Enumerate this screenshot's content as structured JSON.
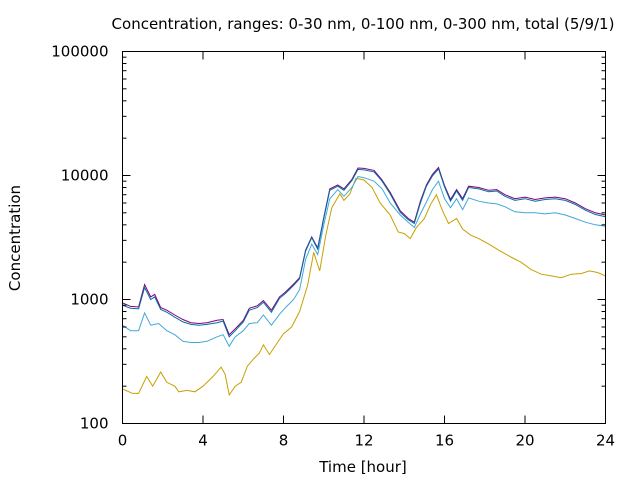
{
  "chart_data": {
    "type": "line",
    "title": "Concentration, ranges: 0-30 nm, 0-100 nm, 0-300 nm, total (5/9/1)",
    "xlabel": "Time [hour]",
    "ylabel": "Concentration",
    "xlim": [
      0,
      24
    ],
    "ylim": [
      100,
      100000
    ],
    "yscale": "log",
    "grid": false,
    "legend": "none",
    "x_ticks": [
      "0",
      "4",
      "8",
      "12",
      "16",
      "20",
      "24"
    ],
    "y_ticks": [
      "100",
      "1000",
      "10000",
      "100000"
    ],
    "series": [
      {
        "color": "#c8a000",
        "points": [
          [
            0,
            190
          ],
          [
            0.5,
            175
          ],
          [
            0.8,
            175
          ],
          [
            1.2,
            240
          ],
          [
            1.5,
            200
          ],
          [
            1.9,
            260
          ],
          [
            2.2,
            215
          ],
          [
            2.6,
            200
          ],
          [
            2.8,
            180
          ],
          [
            3.2,
            185
          ],
          [
            3.6,
            180
          ],
          [
            4.0,
            200
          ],
          [
            4.5,
            240
          ],
          [
            4.9,
            285
          ],
          [
            5.1,
            250
          ],
          [
            5.3,
            170
          ],
          [
            5.6,
            200
          ],
          [
            5.9,
            215
          ],
          [
            6.2,
            290
          ],
          [
            6.5,
            330
          ],
          [
            6.8,
            370
          ],
          [
            7.0,
            430
          ],
          [
            7.3,
            360
          ],
          [
            7.7,
            450
          ],
          [
            8.0,
            530
          ],
          [
            8.4,
            600
          ],
          [
            8.8,
            800
          ],
          [
            9.2,
            1300
          ],
          [
            9.5,
            2400
          ],
          [
            9.8,
            1700
          ],
          [
            10.1,
            3300
          ],
          [
            10.4,
            5500
          ],
          [
            10.8,
            7100
          ],
          [
            11.0,
            6300
          ],
          [
            11.3,
            7100
          ],
          [
            11.6,
            9500
          ],
          [
            12.0,
            9200
          ],
          [
            12.4,
            8000
          ],
          [
            12.8,
            6000
          ],
          [
            13.3,
            4800
          ],
          [
            13.7,
            3500
          ],
          [
            14.0,
            3400
          ],
          [
            14.3,
            3100
          ],
          [
            14.6,
            3800
          ],
          [
            15.0,
            4500
          ],
          [
            15.3,
            5800
          ],
          [
            15.6,
            7000
          ],
          [
            15.9,
            5200
          ],
          [
            16.2,
            4100
          ],
          [
            16.6,
            4500
          ],
          [
            16.9,
            3700
          ],
          [
            17.3,
            3300
          ],
          [
            17.7,
            3100
          ],
          [
            18.2,
            2800
          ],
          [
            18.7,
            2500
          ],
          [
            19.3,
            2200
          ],
          [
            19.8,
            2000
          ],
          [
            20.3,
            1750
          ],
          [
            20.8,
            1600
          ],
          [
            21.3,
            1550
          ],
          [
            21.8,
            1500
          ],
          [
            22.3,
            1600
          ],
          [
            22.8,
            1620
          ],
          [
            23.2,
            1700
          ],
          [
            23.6,
            1650
          ],
          [
            24.0,
            1550
          ]
        ]
      },
      {
        "color": "#40a8d8",
        "points": [
          [
            0,
            620
          ],
          [
            0.4,
            560
          ],
          [
            0.8,
            560
          ],
          [
            1.1,
            780
          ],
          [
            1.4,
            620
          ],
          [
            1.8,
            640
          ],
          [
            2.2,
            560
          ],
          [
            2.6,
            520
          ],
          [
            3.0,
            460
          ],
          [
            3.4,
            450
          ],
          [
            3.8,
            450
          ],
          [
            4.2,
            460
          ],
          [
            4.7,
            500
          ],
          [
            5.0,
            520
          ],
          [
            5.3,
            420
          ],
          [
            5.6,
            500
          ],
          [
            6.0,
            560
          ],
          [
            6.3,
            640
          ],
          [
            6.7,
            650
          ],
          [
            7.0,
            750
          ],
          [
            7.4,
            620
          ],
          [
            7.8,
            760
          ],
          [
            8.1,
            860
          ],
          [
            8.5,
            1000
          ],
          [
            8.8,
            1200
          ],
          [
            9.1,
            2100
          ],
          [
            9.4,
            2800
          ],
          [
            9.7,
            2300
          ],
          [
            10.0,
            4000
          ],
          [
            10.3,
            6500
          ],
          [
            10.7,
            7700
          ],
          [
            11.0,
            6800
          ],
          [
            11.4,
            8000
          ],
          [
            11.7,
            9800
          ],
          [
            12.0,
            9600
          ],
          [
            12.5,
            9000
          ],
          [
            12.9,
            7800
          ],
          [
            13.3,
            6000
          ],
          [
            13.8,
            4800
          ],
          [
            14.2,
            4200
          ],
          [
            14.5,
            3800
          ],
          [
            14.8,
            4900
          ],
          [
            15.1,
            6100
          ],
          [
            15.4,
            7700
          ],
          [
            15.7,
            9000
          ],
          [
            16.0,
            6500
          ],
          [
            16.3,
            5500
          ],
          [
            16.6,
            6500
          ],
          [
            16.9,
            5300
          ],
          [
            17.2,
            6600
          ],
          [
            17.7,
            6200
          ],
          [
            18.2,
            6000
          ],
          [
            18.6,
            5900
          ],
          [
            19.0,
            5600
          ],
          [
            19.5,
            5100
          ],
          [
            20.0,
            5000
          ],
          [
            20.5,
            5000
          ],
          [
            21.0,
            4900
          ],
          [
            21.5,
            5000
          ],
          [
            22.0,
            4800
          ],
          [
            22.5,
            4500
          ],
          [
            23.0,
            4200
          ],
          [
            23.5,
            4000
          ],
          [
            24.0,
            3900
          ]
        ]
      },
      {
        "color": "#800080",
        "points": [
          [
            0,
            940
          ],
          [
            0.4,
            880
          ],
          [
            0.8,
            870
          ],
          [
            1.1,
            1320
          ],
          [
            1.4,
            1050
          ],
          [
            1.6,
            1100
          ],
          [
            1.9,
            860
          ],
          [
            2.2,
            820
          ],
          [
            2.6,
            750
          ],
          [
            3.0,
            690
          ],
          [
            3.4,
            650
          ],
          [
            3.8,
            640
          ],
          [
            4.2,
            650
          ],
          [
            4.7,
            680
          ],
          [
            5.0,
            690
          ],
          [
            5.3,
            520
          ],
          [
            5.6,
            580
          ],
          [
            6.0,
            680
          ],
          [
            6.3,
            850
          ],
          [
            6.7,
            890
          ],
          [
            7.0,
            980
          ],
          [
            7.4,
            820
          ],
          [
            7.8,
            1050
          ],
          [
            8.1,
            1150
          ],
          [
            8.5,
            1330
          ],
          [
            8.8,
            1500
          ],
          [
            9.1,
            2500
          ],
          [
            9.4,
            3200
          ],
          [
            9.7,
            2600
          ],
          [
            10.0,
            4600
          ],
          [
            10.3,
            7800
          ],
          [
            10.7,
            8400
          ],
          [
            11.0,
            7800
          ],
          [
            11.4,
            9300
          ],
          [
            11.7,
            11500
          ],
          [
            12.0,
            11400
          ],
          [
            12.5,
            11000
          ],
          [
            12.9,
            9200
          ],
          [
            13.3,
            7300
          ],
          [
            13.8,
            5200
          ],
          [
            14.2,
            4500
          ],
          [
            14.5,
            4200
          ],
          [
            14.8,
            6200
          ],
          [
            15.1,
            8400
          ],
          [
            15.4,
            10200
          ],
          [
            15.7,
            11600
          ],
          [
            16.0,
            8300
          ],
          [
            16.3,
            6400
          ],
          [
            16.6,
            7700
          ],
          [
            16.9,
            6500
          ],
          [
            17.2,
            8200
          ],
          [
            17.7,
            8000
          ],
          [
            18.2,
            7600
          ],
          [
            18.6,
            7700
          ],
          [
            19.0,
            7000
          ],
          [
            19.5,
            6500
          ],
          [
            20.0,
            6700
          ],
          [
            20.5,
            6400
          ],
          [
            21.0,
            6600
          ],
          [
            21.5,
            6700
          ],
          [
            22.0,
            6500
          ],
          [
            22.5,
            6000
          ],
          [
            23.0,
            5400
          ],
          [
            23.5,
            5000
          ],
          [
            24.0,
            4800
          ]
        ]
      },
      {
        "color": "#0070a0",
        "points": [
          [
            0,
            900
          ],
          [
            0.4,
            850
          ],
          [
            0.8,
            840
          ],
          [
            1.1,
            1250
          ],
          [
            1.4,
            1000
          ],
          [
            1.6,
            1050
          ],
          [
            1.9,
            830
          ],
          [
            2.2,
            790
          ],
          [
            2.6,
            720
          ],
          [
            3.0,
            660
          ],
          [
            3.4,
            630
          ],
          [
            3.8,
            620
          ],
          [
            4.2,
            630
          ],
          [
            4.7,
            650
          ],
          [
            5.0,
            670
          ],
          [
            5.3,
            500
          ],
          [
            5.6,
            560
          ],
          [
            6.0,
            660
          ],
          [
            6.3,
            820
          ],
          [
            6.7,
            860
          ],
          [
            7.0,
            950
          ],
          [
            7.4,
            790
          ],
          [
            7.8,
            1020
          ],
          [
            8.1,
            1120
          ],
          [
            8.5,
            1300
          ],
          [
            8.8,
            1470
          ],
          [
            9.1,
            2450
          ],
          [
            9.4,
            3150
          ],
          [
            9.7,
            2550
          ],
          [
            10.0,
            4500
          ],
          [
            10.3,
            7600
          ],
          [
            10.7,
            8200
          ],
          [
            11.0,
            7600
          ],
          [
            11.4,
            9100
          ],
          [
            11.7,
            11200
          ],
          [
            12.0,
            11100
          ],
          [
            12.5,
            10700
          ],
          [
            12.9,
            9000
          ],
          [
            13.3,
            7100
          ],
          [
            13.8,
            5050
          ],
          [
            14.2,
            4400
          ],
          [
            14.5,
            4100
          ],
          [
            14.8,
            6000
          ],
          [
            15.1,
            8200
          ],
          [
            15.4,
            9900
          ],
          [
            15.7,
            11300
          ],
          [
            16.0,
            8100
          ],
          [
            16.3,
            6200
          ],
          [
            16.6,
            7500
          ],
          [
            16.9,
            6300
          ],
          [
            17.2,
            8000
          ],
          [
            17.7,
            7800
          ],
          [
            18.2,
            7400
          ],
          [
            18.6,
            7500
          ],
          [
            19.0,
            6800
          ],
          [
            19.5,
            6300
          ],
          [
            20.0,
            6500
          ],
          [
            20.5,
            6200
          ],
          [
            21.0,
            6400
          ],
          [
            21.5,
            6500
          ],
          [
            22.0,
            6300
          ],
          [
            22.5,
            5850
          ],
          [
            23.0,
            5250
          ],
          [
            23.5,
            4850
          ],
          [
            24.0,
            4650
          ]
        ]
      }
    ]
  }
}
